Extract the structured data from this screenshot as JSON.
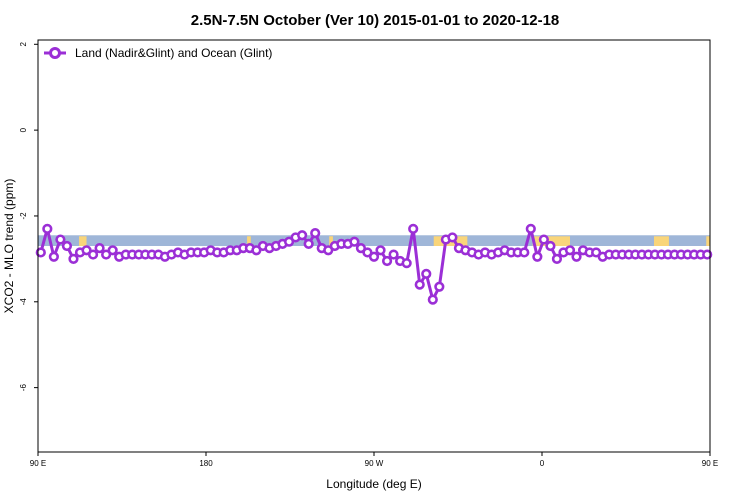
{
  "chart_data": {
    "type": "line",
    "title": "2.5N-7.5N October (Ver 10)   2015-01-01 to 2020-12-18",
    "xlabel": "Longitude (deg E)",
    "ylabel": "XCO2 - MLO trend (ppm)",
    "xlim": [
      90,
      450
    ],
    "ylim": [
      -7.5,
      2.1
    ],
    "x_ticks": [
      {
        "value": 90,
        "label": "90 E"
      },
      {
        "value": 180,
        "label": "180"
      },
      {
        "value": 270,
        "label": "90 W"
      },
      {
        "value": 360,
        "label": "0"
      },
      {
        "value": 450,
        "label": "90 E"
      }
    ],
    "y_ticks": [
      {
        "value": 2,
        "label": "2"
      },
      {
        "value": 0,
        "label": "0"
      },
      {
        "value": -2,
        "label": "-2"
      },
      {
        "value": -4,
        "label": "-4"
      },
      {
        "value": -6,
        "label": "-6"
      }
    ],
    "grid": false,
    "legend_position": "top-left",
    "band": {
      "y_top": -2.45,
      "y_bottom": -2.7,
      "ocean_color": "#9fb6d8",
      "land_color": "#f9d57a",
      "land_segments": [
        [
          112,
          116
        ],
        [
          202,
          204
        ],
        [
          246,
          248
        ],
        [
          302,
          320
        ],
        [
          355,
          375
        ],
        [
          420,
          428
        ],
        [
          448,
          450
        ]
      ]
    },
    "series": [
      {
        "name": "Land (Nadir&Glint) and Ocean (Glint)",
        "color": "#9b2fd6",
        "x": [
          91.5,
          95,
          98.5,
          102,
          105.5,
          109,
          112.5,
          116,
          119.5,
          123,
          126.5,
          130,
          133.5,
          137,
          140.5,
          144,
          147.5,
          151,
          154.5,
          158,
          161.5,
          165,
          168.5,
          172,
          175.5,
          179,
          182.5,
          186,
          189.5,
          193,
          196.5,
          200,
          203.5,
          207,
          210.5,
          214,
          217.5,
          221,
          224.5,
          228,
          231.5,
          235,
          238.5,
          242,
          245.5,
          249,
          252.5,
          256,
          259.5,
          263,
          266.5,
          270,
          273.5,
          277,
          280.5,
          284,
          287.5,
          291,
          294.5,
          298,
          301.5,
          305,
          308.5,
          312,
          315.5,
          319,
          322.5,
          326,
          329.5,
          333,
          336.5,
          340,
          343.5,
          347,
          350.5,
          354,
          357.5,
          361,
          364.5,
          368,
          371.5,
          375,
          378.5,
          382,
          385.5,
          389,
          392.5,
          396,
          399.5,
          403,
          406.5,
          410,
          413.5,
          417,
          420.5,
          424,
          427.5,
          431,
          434.5,
          438,
          441.5,
          445,
          448.5
        ],
        "values": [
          -2.85,
          -2.3,
          -2.95,
          -2.55,
          -2.7,
          -3.0,
          -2.85,
          -2.8,
          -2.9,
          -2.75,
          -2.9,
          -2.8,
          -2.95,
          -2.9,
          -2.9,
          -2.9,
          -2.9,
          -2.9,
          -2.9,
          -2.95,
          -2.9,
          -2.85,
          -2.9,
          -2.85,
          -2.85,
          -2.85,
          -2.8,
          -2.85,
          -2.85,
          -2.8,
          -2.8,
          -2.75,
          -2.75,
          -2.8,
          -2.7,
          -2.75,
          -2.7,
          -2.65,
          -2.6,
          -2.5,
          -2.45,
          -2.65,
          -2.4,
          -2.75,
          -2.8,
          -2.7,
          -2.65,
          -2.65,
          -2.6,
          -2.75,
          -2.85,
          -2.95,
          -2.8,
          -3.05,
          -2.9,
          -3.05,
          -3.1,
          -2.3,
          -3.6,
          -3.35,
          -3.95,
          -3.65,
          -2.55,
          -2.5,
          -2.75,
          -2.8,
          -2.85,
          -2.9,
          -2.85,
          -2.9,
          -2.85,
          -2.8,
          -2.85,
          -2.85,
          -2.85,
          -2.3,
          -2.95,
          -2.55,
          -2.7,
          -3.0,
          -2.85,
          -2.8,
          -2.95,
          -2.8,
          -2.85,
          -2.85,
          -2.95,
          -2.9,
          -2.9,
          -2.9,
          -2.9,
          -2.9,
          -2.9,
          -2.9,
          -2.9,
          -2.9,
          -2.9,
          -2.9,
          -2.9,
          -2.9,
          -2.9,
          -2.9,
          -2.9
        ]
      }
    ]
  }
}
